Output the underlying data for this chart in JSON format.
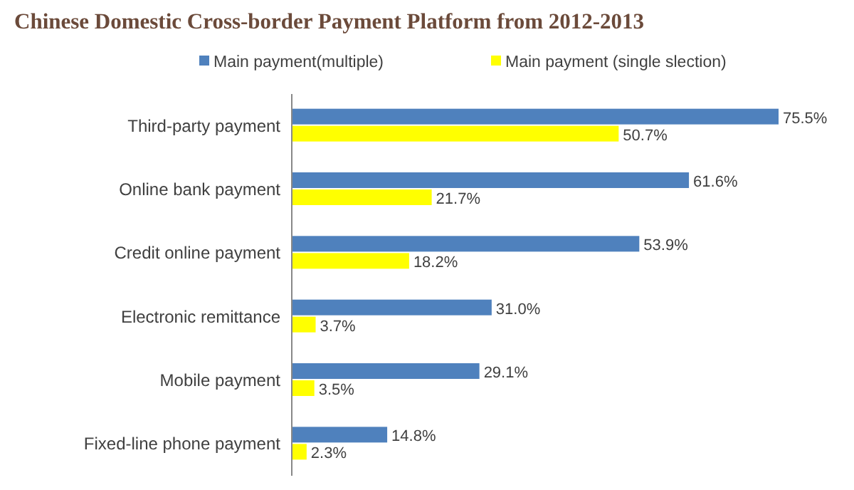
{
  "chart_data": {
    "type": "bar",
    "orientation": "horizontal",
    "title": "Chinese Domestic Cross-border Payment Platform from 2012-2013",
    "categories": [
      "Third-party payment",
      "Online bank payment",
      "Credit online payment",
      "Electronic remittance",
      "Mobile payment",
      "Fixed-line phone payment"
    ],
    "legend": "top",
    "series": [
      {
        "name": "Main payment(multiple)",
        "color": "#4f81bd",
        "values": [
          75.5,
          61.6,
          53.9,
          31.0,
          29.1,
          14.8
        ],
        "value_labels": [
          "75.5%",
          "61.6%",
          "53.9%",
          "31.0%",
          "29.1%",
          "14.8%"
        ]
      },
      {
        "name": "Main payment (single slection)",
        "color": "#ffff00",
        "values": [
          50.7,
          21.7,
          18.2,
          3.7,
          3.5,
          2.3
        ],
        "value_labels": [
          "50.7%",
          "21.7%",
          "18.2%",
          "3.7%",
          "3.5%",
          "2.3%"
        ]
      }
    ]
  }
}
